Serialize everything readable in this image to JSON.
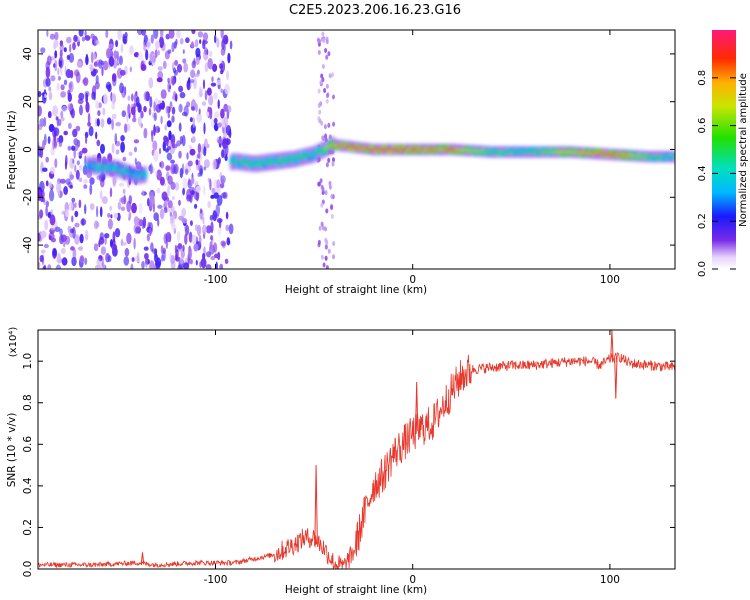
{
  "title": "C2E5.2023.206.16.23.G16",
  "chart_data": [
    {
      "type": "heatmap",
      "xlabel": "Height of straight line (km)",
      "ylabel": "Frequency (Hz)",
      "xlim": [
        -190,
        133
      ],
      "ylim": [
        -50,
        50
      ],
      "xticks": [
        -100,
        0,
        100
      ],
      "yticks": [
        -40,
        -20,
        0,
        20,
        40
      ],
      "colorbar": {
        "label": "Normalized spectral amplitude",
        "range": [
          0,
          1
        ],
        "ticks": [
          "0.0",
          "0.2",
          "0.4",
          "0.6",
          "0.8"
        ],
        "tick_values": [
          0,
          0.2,
          0.4,
          0.6,
          0.8
        ]
      },
      "ridge": [
        {
          "x": -160,
          "f": -7,
          "amp": 0.45
        },
        {
          "x": -150,
          "f": -8,
          "amp": 0.45
        },
        {
          "x": -140,
          "f": -11,
          "amp": 0.4
        },
        {
          "x": -90,
          "f": -5,
          "amp": 0.5
        },
        {
          "x": -80,
          "f": -6,
          "amp": 0.5
        },
        {
          "x": -70,
          "f": -5,
          "amp": 0.5
        },
        {
          "x": -60,
          "f": -4,
          "amp": 0.5
        },
        {
          "x": -50,
          "f": -2,
          "amp": 0.45
        },
        {
          "x": -40,
          "f": 2,
          "amp": 0.75
        },
        {
          "x": -30,
          "f": 1,
          "amp": 0.85
        },
        {
          "x": -20,
          "f": 0,
          "amp": 0.9
        },
        {
          "x": 0,
          "f": 0,
          "amp": 0.85
        },
        {
          "x": 20,
          "f": 0,
          "amp": 0.8
        },
        {
          "x": 40,
          "f": -1,
          "amp": 0.55
        },
        {
          "x": 60,
          "f": -1,
          "amp": 0.5
        },
        {
          "x": 80,
          "f": -1,
          "amp": 0.7
        },
        {
          "x": 100,
          "f": -2,
          "amp": 0.9
        },
        {
          "x": 120,
          "f": -3,
          "amp": 0.55
        },
        {
          "x": 133,
          "f": -3,
          "amp": 0.45
        }
      ],
      "noise_region": {
        "x_from": -190,
        "x_to": -92,
        "f_from": -50,
        "f_to": 50,
        "amp": 0.15
      }
    },
    {
      "type": "line",
      "xlabel": "Height of straight line (km)",
      "ylabel": "SNR (10 * v/v)",
      "multiplier": "(x10⁴)",
      "xlim": [
        -190,
        133
      ],
      "ylim": [
        0,
        1.15
      ],
      "xticks": [
        -100,
        0,
        100
      ],
      "yticks": [
        "0.0",
        "0.2",
        "0.4",
        "0.6",
        "0.8",
        "1.0"
      ],
      "ytick_values": [
        0,
        0.2,
        0.4,
        0.6,
        0.8,
        1.0
      ],
      "x": [
        -190,
        -160,
        -140,
        -130,
        -110,
        -90,
        -80,
        -70,
        -60,
        -55,
        -50,
        -45,
        -40,
        -35,
        -30,
        -25,
        -20,
        -15,
        -10,
        -5,
        0,
        5,
        10,
        15,
        20,
        25,
        30,
        40,
        50,
        60,
        70,
        80,
        90,
        95,
        100,
        105,
        110,
        120,
        133
      ],
      "y": [
        0.02,
        0.02,
        0.03,
        0.02,
        0.03,
        0.03,
        0.05,
        0.07,
        0.12,
        0.15,
        0.15,
        0.1,
        0.03,
        0.01,
        0.08,
        0.25,
        0.4,
        0.45,
        0.55,
        0.6,
        0.65,
        0.68,
        0.7,
        0.78,
        0.86,
        0.93,
        0.96,
        0.97,
        0.98,
        0.98,
        0.99,
        1.0,
        1.0,
        0.98,
        1.01,
        1.02,
        0.99,
        0.98,
        0.97
      ],
      "spikes": [
        {
          "x": -137,
          "y": 0.08
        },
        {
          "x": -49,
          "y": 0.5
        },
        {
          "x": 2,
          "y": 0.9
        },
        {
          "x": 101,
          "y": 1.15
        },
        {
          "x": 103,
          "y": 0.82
        }
      ],
      "color": "#e8372b"
    }
  ]
}
